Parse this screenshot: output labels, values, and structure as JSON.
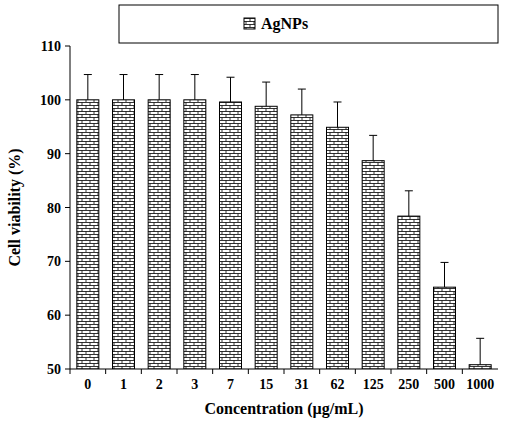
{
  "chart_data": {
    "type": "bar",
    "x_label": "Concentration (µg/mL)",
    "y_label": "Cell viability (%)",
    "categories": [
      "0",
      "1",
      "2",
      "3",
      "7",
      "15",
      "31",
      "62",
      "125",
      "250",
      "500",
      "1000"
    ],
    "series": [
      {
        "name": "AgNPs",
        "color": "#000000",
        "values": [
          100,
          100,
          100,
          100,
          99.6,
          98.8,
          97.2,
          94.9,
          88.7,
          78.4,
          65.2,
          50.8
        ],
        "errors": [
          4.7,
          4.7,
          4.7,
          4.7,
          4.6,
          4.5,
          4.8,
          4.7,
          4.7,
          4.7,
          4.6,
          4.9
        ]
      }
    ],
    "ylim": [
      50,
      110
    ],
    "yticks": [
      50,
      60,
      70,
      80,
      90,
      100,
      110
    ],
    "grid": false,
    "legend": "top"
  }
}
